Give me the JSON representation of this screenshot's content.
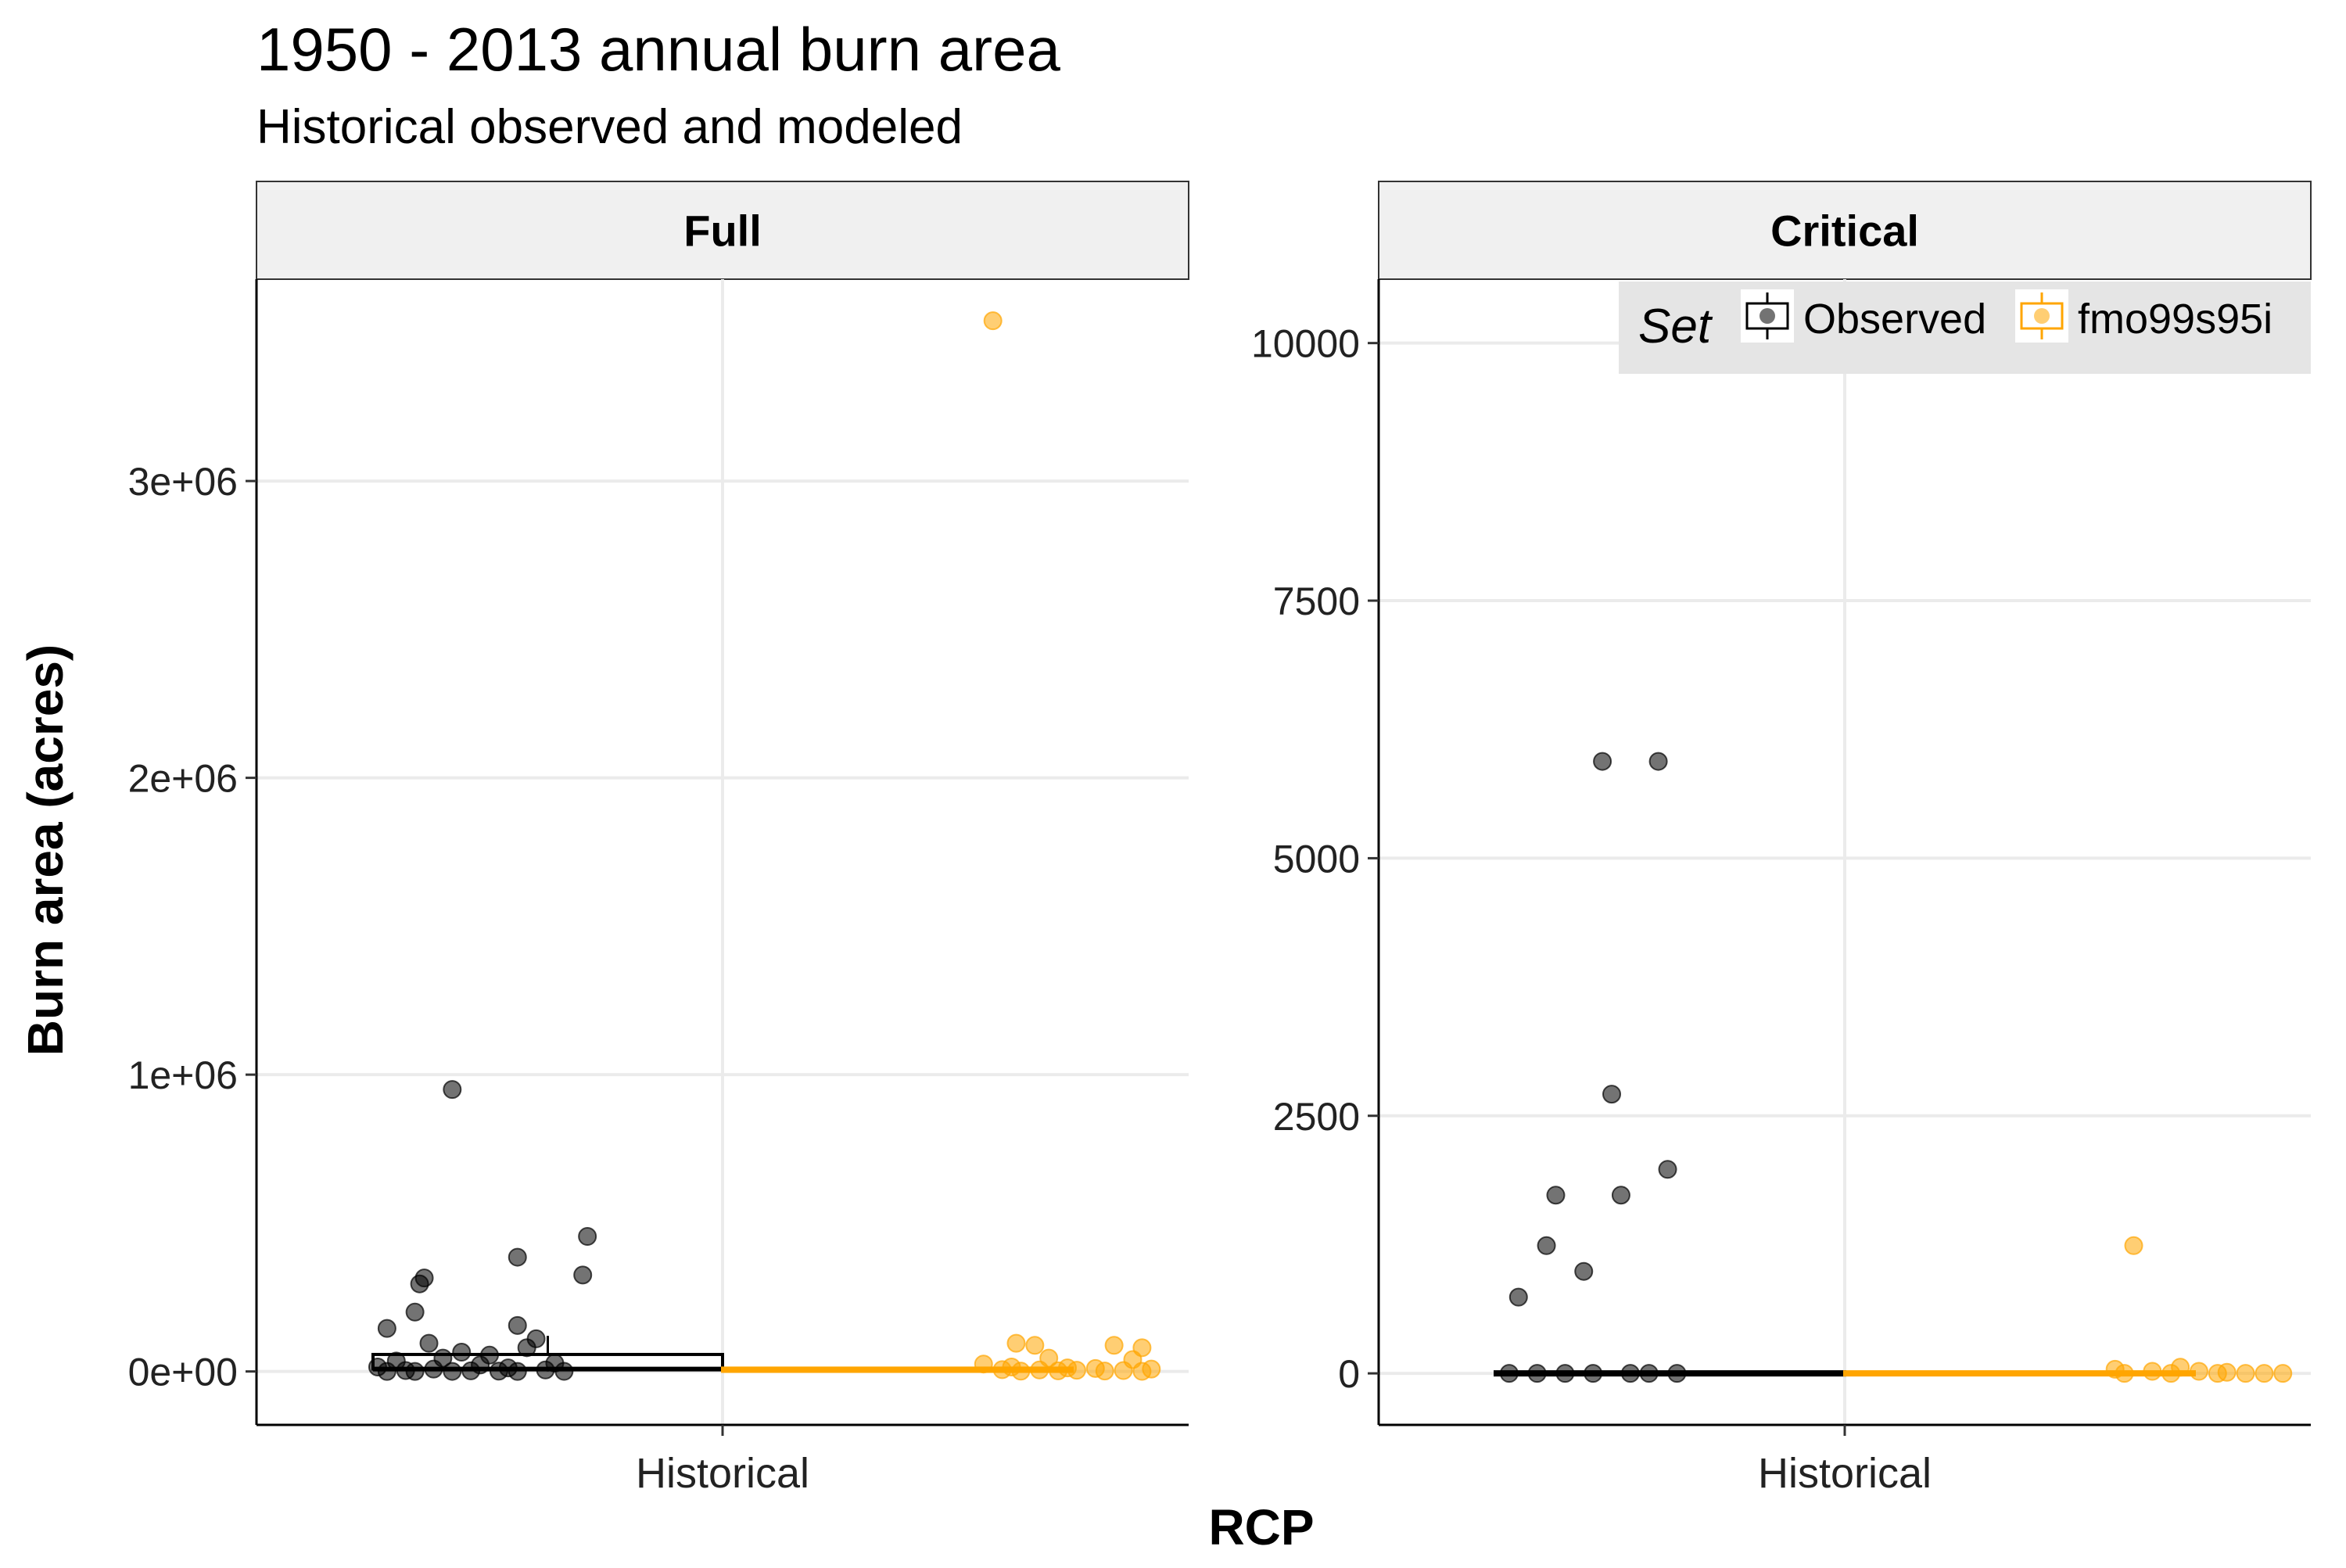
{
  "title": "1950 - 2013 annual burn area",
  "subtitle": "Historical observed and modeled",
  "ylabel": "Burn area (acres)",
  "xlabel": "RCP",
  "colors": {
    "observed": "#000000",
    "modeled": "#FFA500",
    "strip_bg": "#f0f0f0",
    "legend_bg": "#e5e5e5",
    "grid": "#ebebeb"
  },
  "chart_data": [
    {
      "type": "box",
      "panel": "Full",
      "categories": [
        "Historical"
      ],
      "ylim": [
        -180000,
        3680000
      ],
      "yticks": [
        0,
        1000000,
        2000000,
        3000000
      ],
      "yticklabels": [
        "0e+00",
        "1e+06",
        "2e+06",
        "3e+06"
      ],
      "grid": true,
      "series": [
        {
          "name": "Observed",
          "box": {
            "q1": 3000,
            "median": 8000,
            "q3": 52000,
            "whisker_low": 0,
            "whisker_high": 120000
          },
          "points": [
            {
              "x": -0.58,
              "y": 950000
            },
            {
              "x": -0.29,
              "y": 455000
            },
            {
              "x": -0.44,
              "y": 385000
            },
            {
              "x": -0.64,
              "y": 315000
            },
            {
              "x": -0.3,
              "y": 325000
            },
            {
              "x": -0.65,
              "y": 295000
            },
            {
              "x": -0.66,
              "y": 200000
            },
            {
              "x": -0.44,
              "y": 155000
            },
            {
              "x": -0.72,
              "y": 145000
            },
            {
              "x": -0.4,
              "y": 110000
            },
            {
              "x": -0.63,
              "y": 95000
            },
            {
              "x": -0.42,
              "y": 80000
            },
            {
              "x": -0.56,
              "y": 65000
            },
            {
              "x": -0.5,
              "y": 55000
            },
            {
              "x": -0.6,
              "y": 45000
            },
            {
              "x": -0.7,
              "y": 35000
            },
            {
              "x": -0.36,
              "y": 28000
            },
            {
              "x": -0.52,
              "y": 22000
            },
            {
              "x": -0.74,
              "y": 15000
            },
            {
              "x": -0.46,
              "y": 12000
            },
            {
              "x": -0.62,
              "y": 8000
            },
            {
              "x": -0.38,
              "y": 5000
            },
            {
              "x": -0.68,
              "y": 3000
            },
            {
              "x": -0.54,
              "y": 2000
            },
            {
              "x": -0.48,
              "y": 1000
            },
            {
              "x": -0.34,
              "y": 500
            },
            {
              "x": -0.58,
              "y": 300
            },
            {
              "x": -0.66,
              "y": 200
            },
            {
              "x": -0.44,
              "y": 100
            },
            {
              "x": -0.72,
              "y": 50
            }
          ]
        },
        {
          "name": "fmo99s95i",
          "box": {
            "q1": 1000,
            "median": 3000,
            "q3": 6000,
            "whisker_low": 0,
            "whisker_high": 10000
          },
          "points": [
            {
              "x": 0.58,
              "y": 3540000
            },
            {
              "x": 0.63,
              "y": 95000
            },
            {
              "x": 0.67,
              "y": 88000
            },
            {
              "x": 0.84,
              "y": 88000
            },
            {
              "x": 0.9,
              "y": 80000
            },
            {
              "x": 0.7,
              "y": 45000
            },
            {
              "x": 0.88,
              "y": 40000
            },
            {
              "x": 0.56,
              "y": 25000
            },
            {
              "x": 0.62,
              "y": 15000
            },
            {
              "x": 0.74,
              "y": 12000
            },
            {
              "x": 0.8,
              "y": 10000
            },
            {
              "x": 0.92,
              "y": 8000
            },
            {
              "x": 0.6,
              "y": 6000
            },
            {
              "x": 0.68,
              "y": 5000
            },
            {
              "x": 0.76,
              "y": 4000
            },
            {
              "x": 0.86,
              "y": 3000
            },
            {
              "x": 0.72,
              "y": 2000
            },
            {
              "x": 0.82,
              "y": 1500
            },
            {
              "x": 0.64,
              "y": 1000
            },
            {
              "x": 0.9,
              "y": 500
            }
          ]
        }
      ]
    },
    {
      "type": "box",
      "panel": "Critical",
      "categories": [
        "Historical"
      ],
      "ylim": [
        -500,
        10620
      ],
      "yticks": [
        0,
        2500,
        5000,
        7500,
        10000
      ],
      "yticklabels": [
        "0",
        "2500",
        "5000",
        "7500",
        "10000"
      ],
      "grid": true,
      "legend": {
        "title": "Set",
        "position": "top-right",
        "entries": [
          "Observed",
          "fmo99s95i"
        ]
      },
      "series": [
        {
          "name": "Observed",
          "box": {
            "q1": 0,
            "median": 0,
            "q3": 0,
            "whisker_low": 0,
            "whisker_high": 0
          },
          "points": [
            {
              "x": -0.52,
              "y": 5940
            },
            {
              "x": -0.4,
              "y": 5940
            },
            {
              "x": -0.5,
              "y": 2710
            },
            {
              "x": -0.38,
              "y": 1980
            },
            {
              "x": -0.62,
              "y": 1730
            },
            {
              "x": -0.48,
              "y": 1730
            },
            {
              "x": -0.64,
              "y": 1240
            },
            {
              "x": -0.56,
              "y": 990
            },
            {
              "x": -0.7,
              "y": 740
            },
            {
              "x": -0.72,
              "y": 0
            },
            {
              "x": -0.66,
              "y": 0
            },
            {
              "x": -0.6,
              "y": 0
            },
            {
              "x": -0.54,
              "y": 0
            },
            {
              "x": -0.46,
              "y": 0
            },
            {
              "x": -0.42,
              "y": 0
            },
            {
              "x": -0.36,
              "y": 0
            }
          ]
        },
        {
          "name": "fmo99s95i",
          "box": {
            "q1": 0,
            "median": 0,
            "q3": 0,
            "whisker_low": 0,
            "whisker_high": 0
          },
          "points": [
            {
              "x": 0.62,
              "y": 1240
            },
            {
              "x": 0.72,
              "y": 60
            },
            {
              "x": 0.58,
              "y": 40
            },
            {
              "x": 0.66,
              "y": 20
            },
            {
              "x": 0.76,
              "y": 20
            },
            {
              "x": 0.82,
              "y": 10
            },
            {
              "x": 0.86,
              "y": 0
            },
            {
              "x": 0.6,
              "y": 0
            },
            {
              "x": 0.7,
              "y": 0
            },
            {
              "x": 0.8,
              "y": 0
            },
            {
              "x": 0.9,
              "y": 0
            },
            {
              "x": 0.94,
              "y": 0
            }
          ]
        }
      ]
    }
  ]
}
